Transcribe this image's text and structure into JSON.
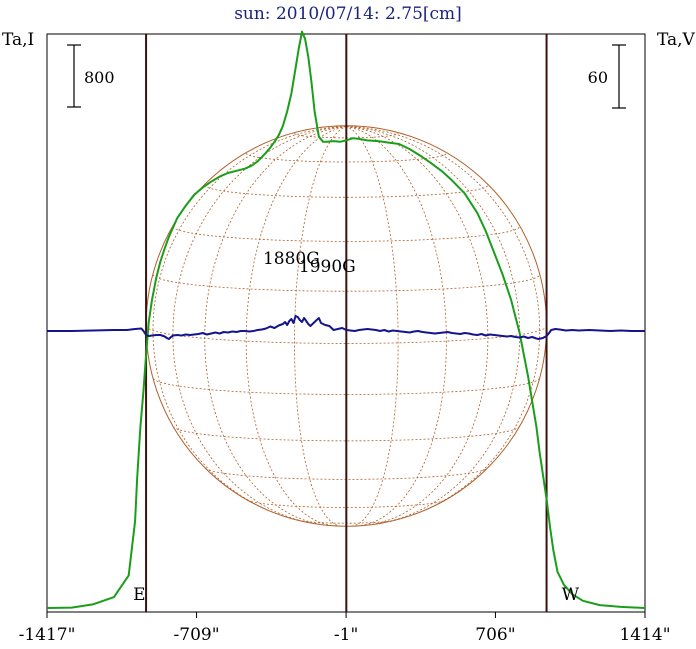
{
  "chart_data": {
    "type": "line",
    "title": "sun: 2010/07/14: 2.75[cm]",
    "left_axis_label": "Ta,I",
    "right_axis_label": "Ta,V",
    "left_scale_bar": "800",
    "right_scale_bar": "60",
    "x_tick_labels": [
      "-1417\"",
      "-709\"",
      "-1\"",
      "706\"",
      "1414\""
    ],
    "x_ticks": [
      -1417,
      -709,
      -1,
      706,
      1414
    ],
    "xlim": [
      -1417,
      1414
    ],
    "limb_labels": [
      "E",
      "W"
    ],
    "limb_positions": [
      -948,
      948
    ],
    "annotations": [
      {
        "text": "1880G",
        "x": -260
      },
      {
        "text": "1990G",
        "x": -90
      }
    ],
    "colors": {
      "intensity": "#1a9e1a",
      "polarization": "#14148c",
      "frame": "#000000",
      "limb_lines": "#3d0f0f",
      "sun_grid": "#b0602a",
      "title": "#1a237e"
    },
    "series": [
      {
        "name": "Ta,I",
        "x": [
          -1417,
          -1300,
          -1200,
          -1100,
          -1030,
          -1000,
          -990,
          -975,
          -960,
          -948,
          -935,
          -920,
          -900,
          -880,
          -860,
          -840,
          -800,
          -760,
          -720,
          -680,
          -640,
          -600,
          -560,
          -520,
          -480,
          -450,
          -420,
          -400,
          -380,
          -360,
          -340,
          -320,
          -300,
          -280,
          -260,
          -240,
          -225,
          -210,
          -195,
          -180,
          -165,
          -150,
          -130,
          -110,
          -90,
          -60,
          -30,
          0,
          30,
          60,
          100,
          150,
          200,
          250,
          300,
          350,
          400,
          450,
          500,
          560,
          620,
          660,
          700,
          740,
          780,
          820,
          860,
          880,
          900,
          915,
          930,
          948,
          965,
          980,
          1000,
          1030,
          1070,
          1120,
          1200,
          1300,
          1414
        ],
        "values": [
          0,
          5,
          50,
          150,
          450,
          1200,
          1800,
          2500,
          3000,
          3500,
          3950,
          4250,
          4550,
          4780,
          4960,
          5120,
          5380,
          5550,
          5700,
          5800,
          5880,
          5950,
          6000,
          6030,
          6060,
          6100,
          6160,
          6220,
          6280,
          6350,
          6430,
          6520,
          6650,
          6850,
          7100,
          7450,
          7720,
          7950,
          7850,
          7600,
          7250,
          6850,
          6500,
          6430,
          6430,
          6440,
          6430,
          6450,
          6480,
          6470,
          6450,
          6440,
          6420,
          6400,
          6330,
          6240,
          6140,
          6030,
          5900,
          5720,
          5450,
          5200,
          4900,
          4600,
          4250,
          3800,
          3200,
          2850,
          2500,
          2150,
          1850,
          1500,
          1100,
          800,
          500,
          320,
          190,
          100,
          40,
          15,
          0
        ]
      },
      {
        "name": "Ta,V",
        "x": [
          -1417,
          -1300,
          -1200,
          -1100,
          -1040,
          -1000,
          -970,
          -960,
          -948,
          -935,
          -920,
          -900,
          -880,
          -860,
          -850,
          -840,
          -830,
          -820,
          -800,
          -780,
          -760,
          -740,
          -720,
          -700,
          -680,
          -660,
          -640,
          -620,
          -600,
          -580,
          -560,
          -540,
          -520,
          -500,
          -480,
          -460,
          -440,
          -420,
          -400,
          -380,
          -360,
          -340,
          -320,
          -300,
          -290,
          -280,
          -270,
          -260,
          -250,
          -240,
          -230,
          -220,
          -210,
          -200,
          -190,
          -180,
          -170,
          -160,
          -150,
          -140,
          -130,
          -120,
          -100,
          -80,
          -60,
          -40,
          -20,
          0,
          20,
          40,
          60,
          80,
          100,
          120,
          140,
          160,
          180,
          200,
          220,
          240,
          260,
          280,
          300,
          320,
          340,
          360,
          380,
          400,
          420,
          440,
          460,
          480,
          500,
          520,
          540,
          560,
          580,
          600,
          620,
          640,
          660,
          680,
          700,
          720,
          740,
          760,
          780,
          800,
          820,
          840,
          860,
          880,
          900,
          910,
          920,
          930,
          948,
          960,
          970,
          990,
          1010,
          1040,
          1070,
          1100,
          1150,
          1200,
          1250,
          1300,
          1350,
          1414
        ],
        "values": [
          0,
          0,
          1,
          2,
          2,
          4,
          5,
          0,
          -8,
          -10,
          -9,
          -8,
          -8,
          -11,
          -14,
          -16,
          -12,
          -9,
          -8,
          -9,
          -7,
          -8,
          -7,
          -6,
          -4,
          -7,
          -5,
          -3,
          -5,
          -2,
          -3,
          -1,
          -2,
          0,
          0,
          -1,
          0,
          2,
          3,
          5,
          9,
          6,
          11,
          14,
          18,
          12,
          20,
          24,
          16,
          30,
          28,
          22,
          18,
          26,
          20,
          14,
          10,
          14,
          18,
          22,
          26,
          16,
          12,
          10,
          2,
          4,
          6,
          2,
          1,
          0,
          2,
          3,
          4,
          3,
          2,
          0,
          2,
          -1,
          1,
          0,
          -1,
          -2,
          -3,
          -1,
          0,
          -2,
          -3,
          -4,
          -5,
          -4,
          -3,
          -2,
          -4,
          -5,
          -6,
          -4,
          -5,
          -7,
          -8,
          -6,
          -9,
          -7,
          -8,
          -9,
          -10,
          -11,
          -10,
          -12,
          -13,
          -11,
          -14,
          -12,
          -15,
          -16,
          -15,
          -14,
          -10,
          -4,
          2,
          4,
          3,
          1,
          2,
          1,
          2,
          1,
          0,
          1,
          0,
          0
        ]
      }
    ],
    "sun_disk": {
      "radius_arcsec": 948,
      "grid": true
    },
    "grid": false
  }
}
